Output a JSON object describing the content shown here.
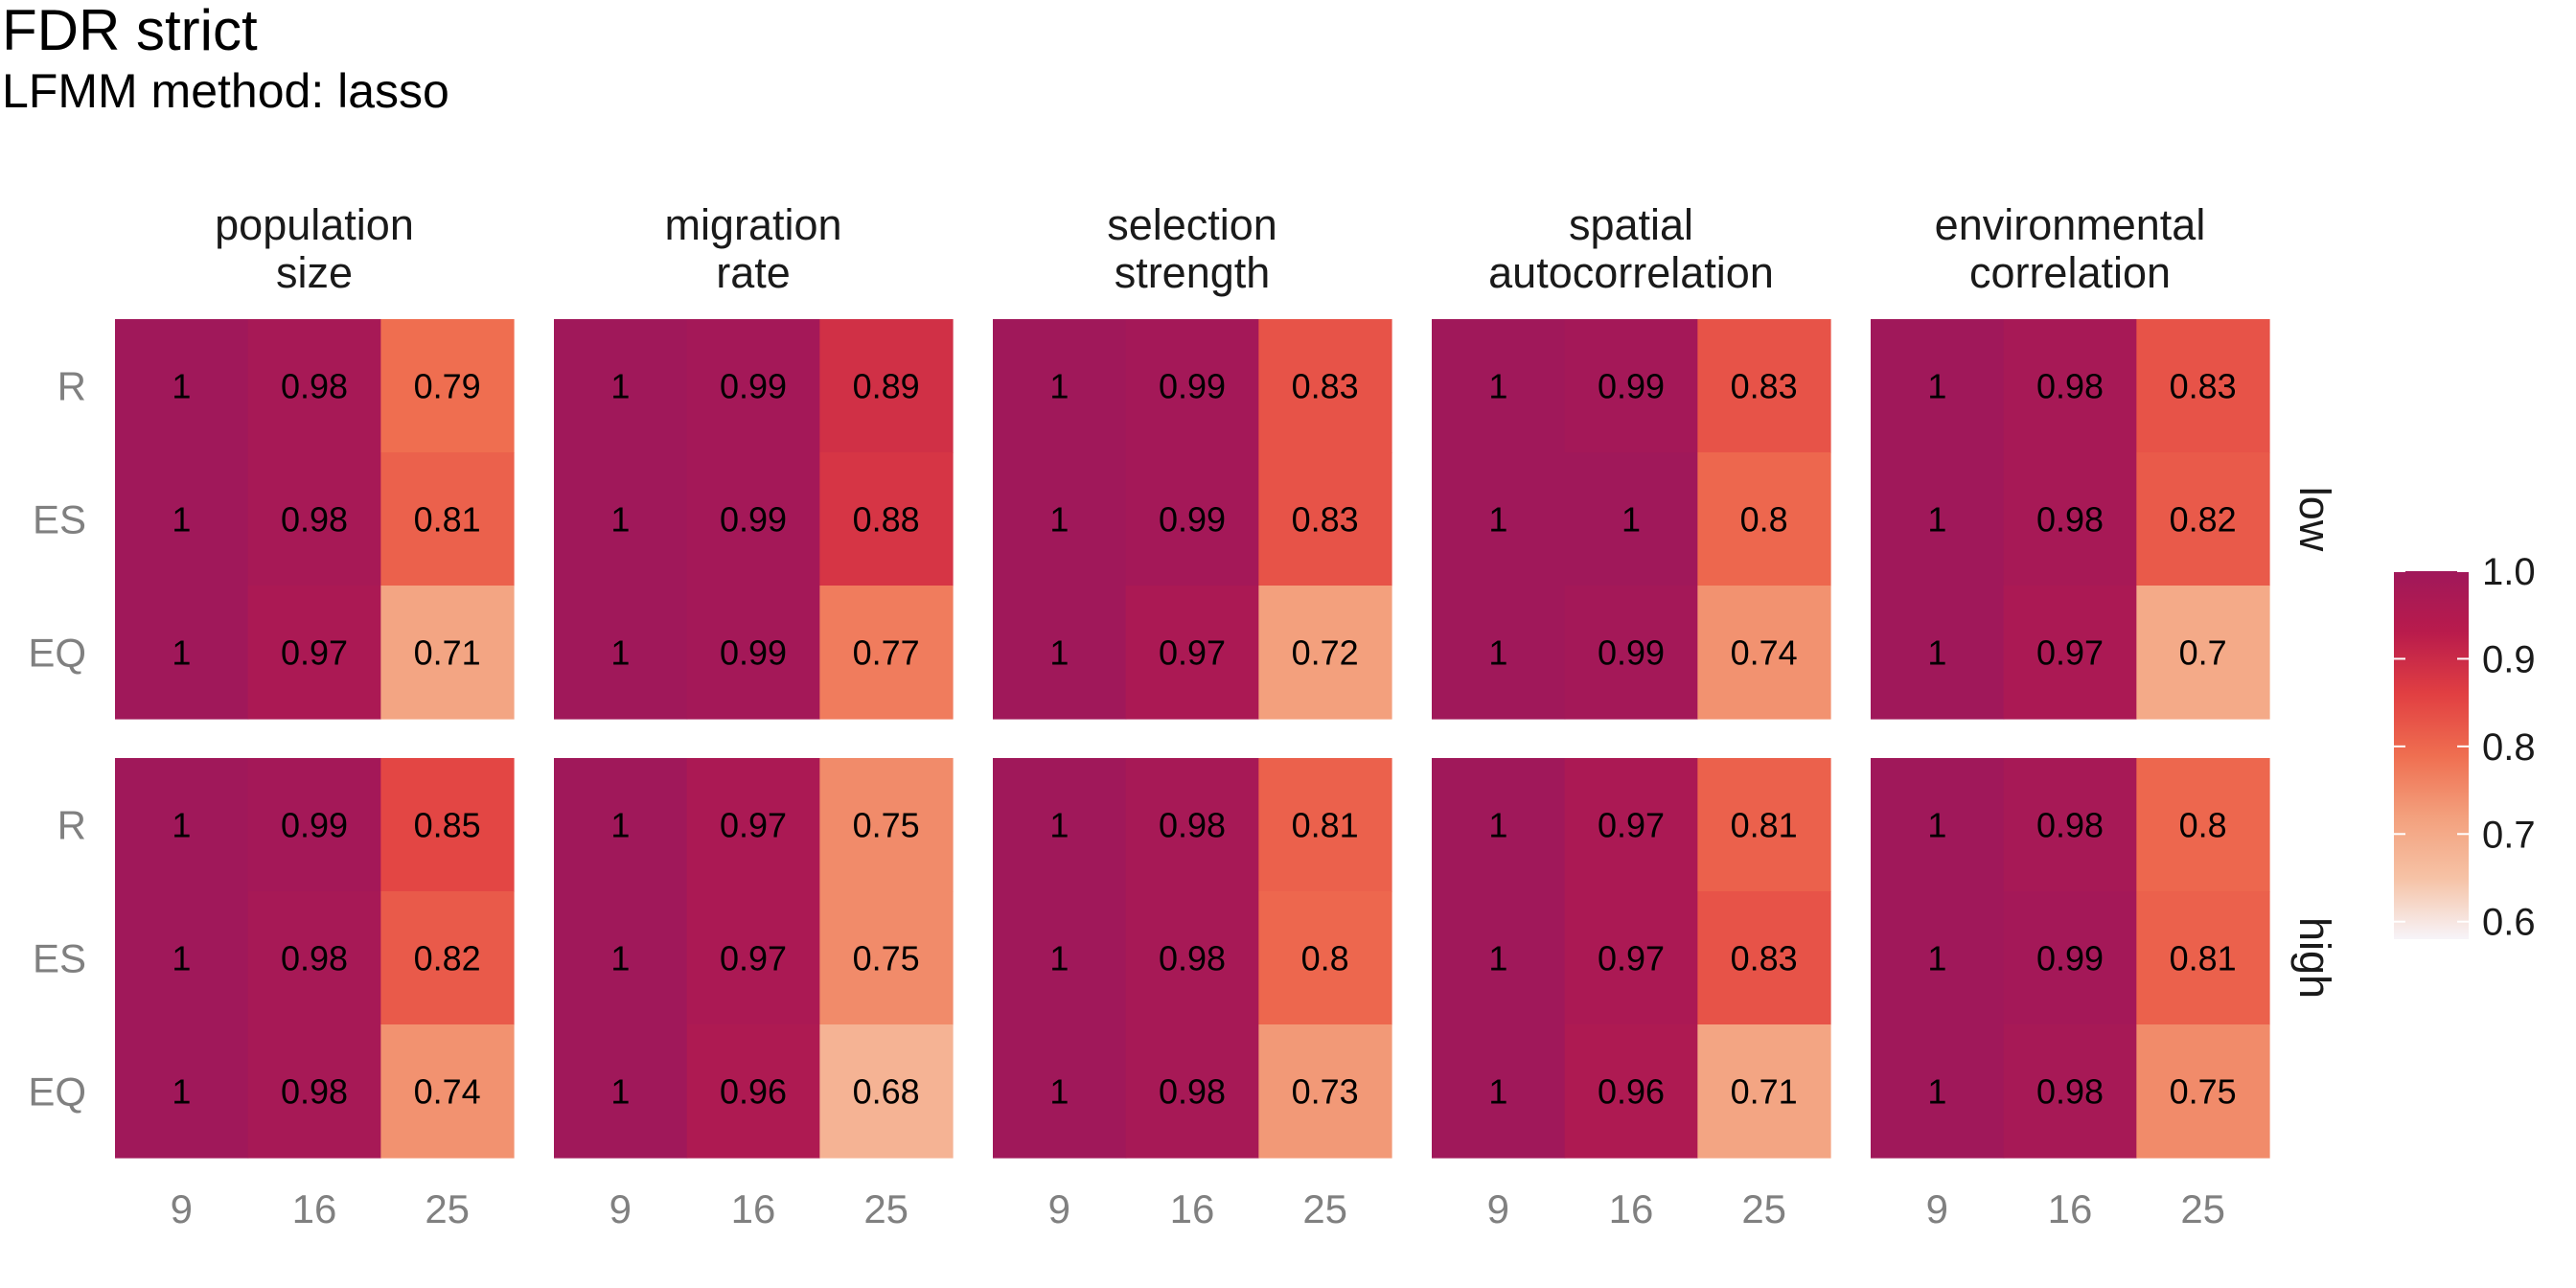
{
  "title": "FDR strict",
  "subtitle": "LFMM method: lasso",
  "chart_data": {
    "type": "heatmap",
    "facet_columns": [
      [
        "population",
        "size"
      ],
      [
        "migration",
        "rate"
      ],
      [
        "selection",
        "strength"
      ],
      [
        "spatial",
        "autocorrelation"
      ],
      [
        "environmental",
        "correlation"
      ]
    ],
    "facet_rows": [
      "low",
      "high"
    ],
    "x_categories": [
      "9",
      "16",
      "25"
    ],
    "y_categories": [
      "R",
      "ES",
      "EQ"
    ],
    "values": {
      "low": [
        [
          [
            1,
            0.98,
            0.79
          ],
          [
            1,
            0.98,
            0.81
          ],
          [
            1,
            0.97,
            0.71
          ]
        ],
        [
          [
            1,
            0.99,
            0.89
          ],
          [
            1,
            0.99,
            0.88
          ],
          [
            1,
            0.99,
            0.77
          ]
        ],
        [
          [
            1,
            0.99,
            0.83
          ],
          [
            1,
            0.99,
            0.83
          ],
          [
            1,
            0.97,
            0.72
          ]
        ],
        [
          [
            1,
            0.99,
            0.83
          ],
          [
            1,
            1,
            0.8
          ],
          [
            1,
            0.99,
            0.74
          ]
        ],
        [
          [
            1,
            0.98,
            0.83
          ],
          [
            1,
            0.98,
            0.82
          ],
          [
            1,
            0.97,
            0.7
          ]
        ]
      ],
      "high": [
        [
          [
            1,
            0.99,
            0.85
          ],
          [
            1,
            0.98,
            0.82
          ],
          [
            1,
            0.98,
            0.74
          ]
        ],
        [
          [
            1,
            0.97,
            0.75
          ],
          [
            1,
            0.97,
            0.75
          ],
          [
            1,
            0.96,
            0.68
          ]
        ],
        [
          [
            1,
            0.98,
            0.81
          ],
          [
            1,
            0.98,
            0.8
          ],
          [
            1,
            0.98,
            0.73
          ]
        ],
        [
          [
            1,
            0.97,
            0.81
          ],
          [
            1,
            0.97,
            0.83
          ],
          [
            1,
            0.96,
            0.71
          ]
        ],
        [
          [
            1,
            0.98,
            0.8
          ],
          [
            1,
            0.99,
            0.81
          ],
          [
            1,
            0.98,
            0.75
          ]
        ]
      ]
    },
    "legend": {
      "ticks": [
        "1.0",
        "0.9",
        "0.8",
        "0.7",
        "0.6"
      ],
      "range": [
        0.58,
        1.0
      ],
      "placement": "right",
      "colors": [
        "#f7f4f9",
        "#f6c2a5",
        "#f3a07d",
        "#ef6e50",
        "#e13f42",
        "#b91b4c",
        "#a0185a"
      ]
    }
  }
}
